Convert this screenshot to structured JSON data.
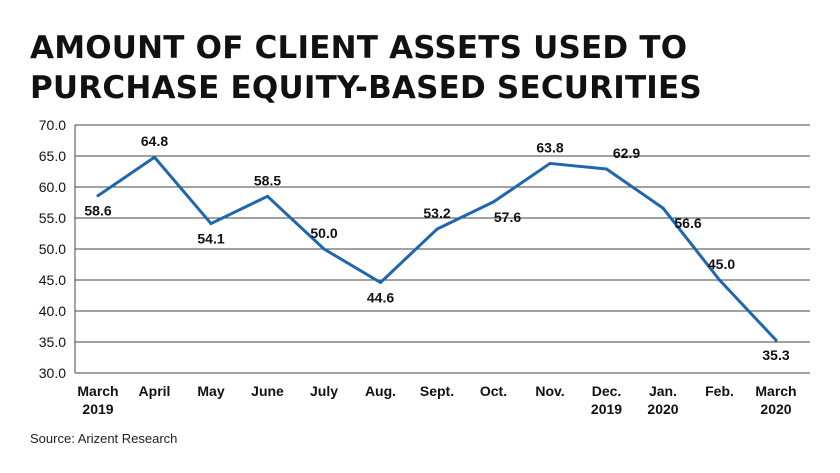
{
  "title": "AMOUNT OF CLIENT ASSETS USED TO PURCHASE EQUITY-BASED SECURITIES",
  "source": "Source: Arizent Research",
  "colors": {
    "line": "#1f66b0",
    "grid": "#444444",
    "text": "#111111"
  },
  "chart_data": {
    "type": "line",
    "title": "AMOUNT OF CLIENT ASSETS USED TO PURCHASE EQUITY-BASED SECURITIES",
    "xlabel": "",
    "ylabel": "",
    "categories": [
      [
        "March",
        "2019"
      ],
      [
        "April"
      ],
      [
        "May"
      ],
      [
        "June"
      ],
      [
        "July"
      ],
      [
        "Aug."
      ],
      [
        "Sept."
      ],
      [
        "Oct."
      ],
      [
        "Nov."
      ],
      [
        "Dec.",
        "2019"
      ],
      [
        "Jan.",
        "2020"
      ],
      [
        "Feb."
      ],
      [
        "March",
        "2020"
      ]
    ],
    "series": [
      {
        "values": [
          58.6,
          64.8,
          54.1,
          58.5,
          50.0,
          44.6,
          53.2,
          57.6,
          63.8,
          62.9,
          56.6,
          45.0,
          35.3
        ]
      }
    ],
    "data_labels": [
      "58.6",
      "64.8",
      "54.1",
      "58.5",
      "50.0",
      "44.6",
      "53.2",
      "57.6",
      "63.8",
      "62.9",
      "56.6",
      "45.0",
      "35.3"
    ],
    "ylim": [
      30,
      70
    ],
    "yticks": [
      30,
      35,
      40,
      45,
      50,
      55,
      60,
      65,
      70
    ],
    "ytick_labels": [
      "30.0",
      "35.0",
      "40.0",
      "45.0",
      "50.0",
      "55.0",
      "60.0",
      "65.0",
      "70.0"
    ],
    "grid": "horizontal",
    "legend": "none"
  }
}
